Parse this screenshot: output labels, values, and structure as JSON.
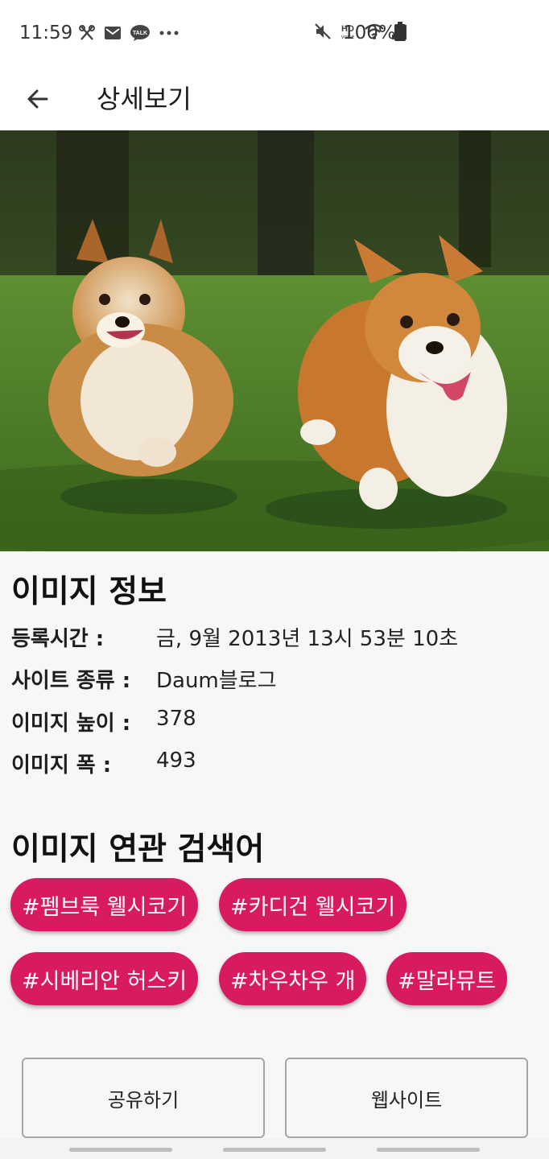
{
  "status_bar": {
    "time": "11:59",
    "battery_text": "100%",
    "icons_left": [
      "tools-icon",
      "mail-icon",
      "kakaotalk-icon",
      "more-dots-icon"
    ],
    "icons_right": [
      "mute-icon",
      "hd-voice-icon",
      "wifi-icon",
      "signal-icon",
      "battery-icon"
    ],
    "hd_text": "HD",
    "voice_text": "voice",
    "talk_text": "TALK"
  },
  "app_bar": {
    "title": "상세보기",
    "back_icon": "arrow-left-icon"
  },
  "image_info": {
    "title": "이미지 정보",
    "rows": [
      {
        "label": "등록시간 :",
        "value": "금, 9월 2013년 13시 53분 10초"
      },
      {
        "label": "사이트 종류 :",
        "value": "Daum블로그"
      },
      {
        "label": "이미지 높이 :",
        "value": "378"
      },
      {
        "label": "이미지 폭 :",
        "value": "493"
      }
    ]
  },
  "related": {
    "title": "이미지 연관 검색어",
    "chips": [
      "#펨브룩 웰시코기",
      "#카디건 웰시코기",
      "#시베리안 허스키",
      "#차우차우 개",
      "#말라뮤트"
    ]
  },
  "actions": {
    "share_label": "공유하기",
    "website_label": "웹사이트"
  },
  "colors": {
    "accent": "#d81b60",
    "background": "#f7f7f7"
  }
}
